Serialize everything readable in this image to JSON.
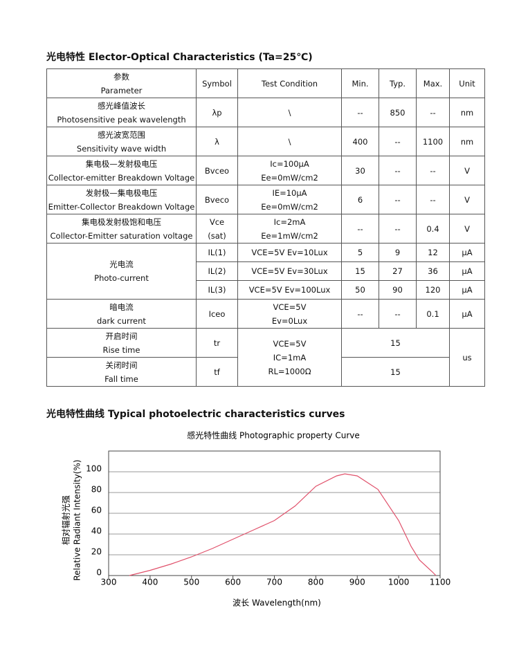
{
  "section1_title": "光电特性 Elector-Optical Characteristics (Ta=25℃)",
  "table": {
    "header": [
      [
        "参数",
        "Parameter"
      ],
      "Symbol",
      "Test Condition",
      "Min.",
      "Typ.",
      "Max.",
      "Unit"
    ],
    "rows": [
      [
        [
          "感光峰值波长",
          "Photosensitive peak wavelength"
        ],
        "λp",
        "\\",
        "--",
        "850",
        "--",
        "nm"
      ],
      [
        [
          "感光波宽范围",
          "Sensitivity wave width"
        ],
        "λ",
        "\\",
        "400",
        "--",
        "1100",
        "nm"
      ],
      [
        [
          "集电极—发射极电压",
          "Collector-emitter Breakdown Voltage"
        ],
        "Bvceo",
        [
          "Ic=100μA",
          "Ee=0mW/cm2"
        ],
        "30",
        "--",
        "--",
        "V"
      ],
      [
        [
          "发射极—集电极电压",
          "Emitter-Collector Breakdown Voltage"
        ],
        "Bveco",
        [
          "IE=10μA",
          "Ee=0mW/cm2"
        ],
        "6",
        "--",
        "--",
        "V"
      ],
      [
        [
          "集电极发射极饱和电压",
          "Collector-Emitter saturation voltage"
        ],
        [
          "Vce",
          "(sat)"
        ],
        [
          "Ic=2mA",
          "Ee=1mW/cm2"
        ],
        "--",
        "--",
        "0.4",
        "V"
      ],
      [
        [
          "光电流",
          "Photo-current"
        ],
        "IL(1)",
        "VCE=5V   Ev=10Lux",
        "5",
        "9",
        "12",
        "μA"
      ],
      [
        "IL(2)",
        "VCE=5V   Ev=30Lux",
        "15",
        "27",
        "36",
        "μA"
      ],
      [
        "IL(3)",
        "VCE=5V   Ev=100Lux",
        "50",
        "90",
        "120",
        "μA"
      ],
      [
        [
          "暗电流",
          "dark current"
        ],
        "Iceo",
        [
          "VCE=5V",
          "Ev=0Lux"
        ],
        "--",
        "--",
        "0.1",
        "μA"
      ],
      [
        [
          "开启时间",
          "Rise time"
        ],
        "tr",
        [
          "VCE=5V",
          "IC=1mA",
          "RL=1000Ω"
        ],
        "15",
        "us"
      ],
      [
        [
          "关闭时间",
          "Fall time"
        ],
        "tf",
        "15"
      ]
    ]
  },
  "section2_title": "光电特性曲线 Typical photoelectric characteristics curves",
  "chart_data": {
    "type": "line",
    "title": "感光特性曲线  Photographic property Curve",
    "x_label": "波长  Wavelength(nm)",
    "y_label": [
      "相对辐射光强",
      "Relative  Radiant Intensity(%)"
    ],
    "x": [
      350,
      400,
      450,
      500,
      550,
      600,
      650,
      700,
      750,
      800,
      850,
      870,
      900,
      950,
      1000,
      1030,
      1050,
      1080,
      1090
    ],
    "values": [
      0,
      5,
      11,
      18,
      26,
      35,
      44,
      53,
      67,
      86,
      96,
      98,
      96,
      83,
      53,
      28,
      15,
      4,
      0
    ],
    "color": "#e0506a",
    "xlim": [
      300,
      1100
    ],
    "xticks": [
      300,
      400,
      500,
      600,
      700,
      800,
      900,
      1000,
      1100
    ],
    "ylim": [
      0,
      120
    ],
    "yticks": [
      0,
      20,
      40,
      60,
      80,
      100
    ],
    "grid": true
  }
}
